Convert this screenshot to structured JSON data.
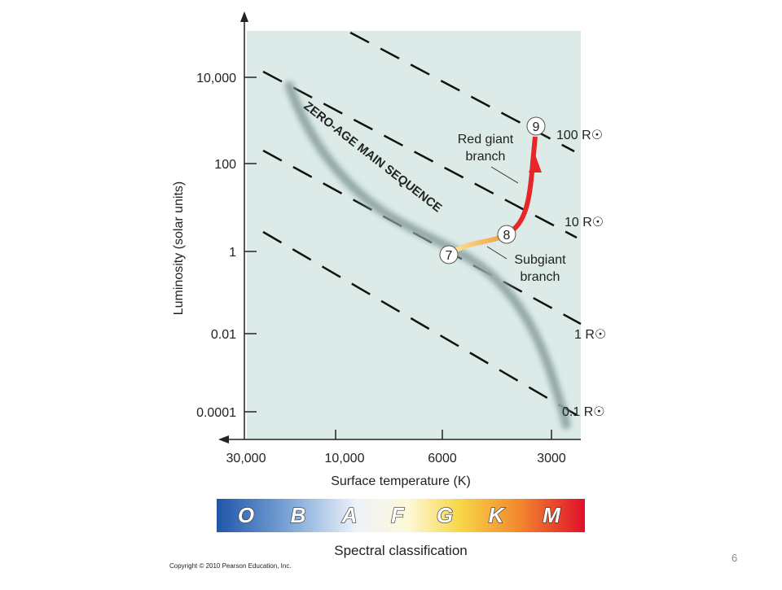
{
  "title": "",
  "y_axis": {
    "label": "Luminosity (solar units)",
    "ticks": [
      "10,000",
      "100",
      "1",
      "0.01",
      "0.0001"
    ]
  },
  "x_axis": {
    "label": "Surface temperature (K)",
    "ticks": [
      "30,000",
      "10,000",
      "6000",
      "3000"
    ]
  },
  "radius_lines": [
    "100 R☉",
    "10 R☉",
    "1 R☉",
    "0.1 R☉"
  ],
  "main_sequence_label": "ZERO-AGE MAIN SEQUENCE",
  "stages": [
    "7",
    "8",
    "9"
  ],
  "branches": {
    "red_giant": [
      "Red giant",
      "branch"
    ],
    "subgiant": [
      "Subgiant",
      "branch"
    ]
  },
  "spectral": {
    "classes": [
      "O",
      "B",
      "A",
      "F",
      "G",
      "K",
      "M"
    ],
    "label": "Spectral classification"
  },
  "copyright": "Copyright © 2010 Pearson Education, Inc.",
  "page_number": "6"
}
